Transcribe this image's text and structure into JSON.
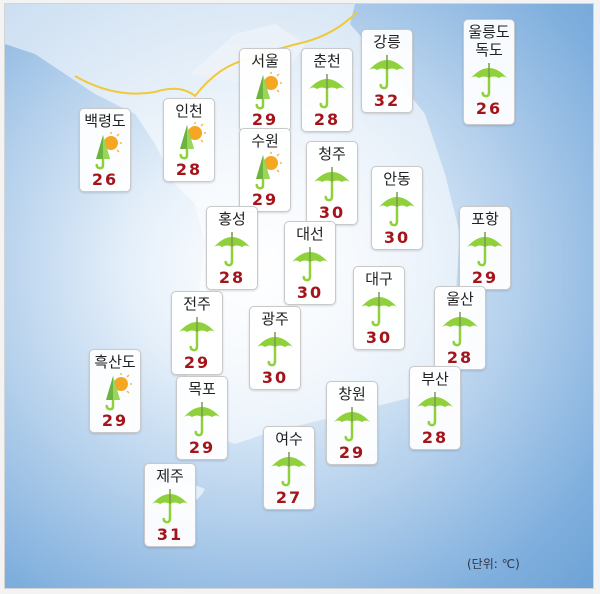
{
  "unit_label": "(단위: ℃)",
  "colors": {
    "temp": "#a4141b",
    "umbrella": "#8fd13a",
    "sun": "#f5a623",
    "sea": "#6ea3d6"
  },
  "stations": [
    {
      "name": "백령도",
      "temp": "26",
      "icon": "closed-umbrella-sun"
    },
    {
      "name": "인천",
      "temp": "28",
      "icon": "closed-umbrella-sun"
    },
    {
      "name": "서울",
      "temp": "29",
      "icon": "closed-umbrella-sun"
    },
    {
      "name": "수원",
      "temp": "29",
      "icon": "closed-umbrella-sun"
    },
    {
      "name": "춘천",
      "temp": "28",
      "icon": "umbrella"
    },
    {
      "name": "강릉",
      "temp": "32",
      "icon": "umbrella"
    },
    {
      "name": "울릉도\n독도",
      "temp": "26",
      "icon": "umbrella"
    },
    {
      "name": "청주",
      "temp": "30",
      "icon": "umbrella"
    },
    {
      "name": "안동",
      "temp": "30",
      "icon": "umbrella"
    },
    {
      "name": "홍성",
      "temp": "28",
      "icon": "umbrella"
    },
    {
      "name": "대선",
      "temp": "30",
      "icon": "umbrella"
    },
    {
      "name": "포항",
      "temp": "29",
      "icon": "umbrella"
    },
    {
      "name": "대구",
      "temp": "30",
      "icon": "umbrella"
    },
    {
      "name": "울산",
      "temp": "28",
      "icon": "umbrella"
    },
    {
      "name": "전주",
      "temp": "29",
      "icon": "umbrella"
    },
    {
      "name": "광주",
      "temp": "30",
      "icon": "umbrella"
    },
    {
      "name": "흑산도",
      "temp": "29",
      "icon": "closed-umbrella-sun"
    },
    {
      "name": "목포",
      "temp": "29",
      "icon": "umbrella"
    },
    {
      "name": "창원",
      "temp": "29",
      "icon": "umbrella"
    },
    {
      "name": "부산",
      "temp": "28",
      "icon": "umbrella"
    },
    {
      "name": "여수",
      "temp": "27",
      "icon": "umbrella"
    },
    {
      "name": "제주",
      "temp": "31",
      "icon": "umbrella"
    }
  ]
}
